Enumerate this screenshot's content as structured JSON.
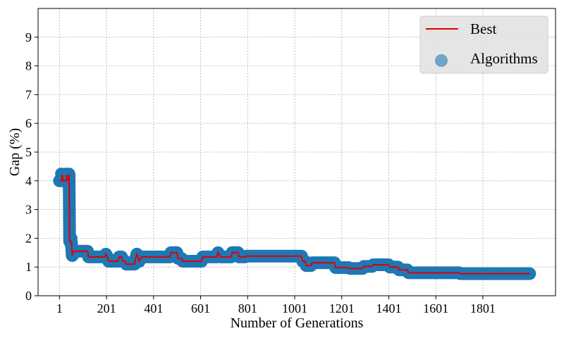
{
  "chart_data": {
    "type": "scatter",
    "title": "",
    "xlabel": "Number of Generations",
    "ylabel": "Gap (%)",
    "xlim": [
      -90,
      2110
    ],
    "ylim": [
      0,
      10
    ],
    "x_ticks": [
      1,
      201,
      401,
      601,
      801,
      1001,
      1201,
      1401,
      1601,
      1801
    ],
    "y_ticks": [
      0,
      1,
      2,
      3,
      4,
      5,
      6,
      7,
      8,
      9
    ],
    "grid": true,
    "legend": {
      "position": "top-right",
      "entries": [
        "Best",
        "Algorithms"
      ]
    },
    "colors": {
      "best": "#e00000",
      "algorithms": "#1f77b4"
    },
    "series": [
      {
        "name": "Best",
        "style": "line",
        "points": [
          [
            1,
            4.0
          ],
          [
            10,
            4.0
          ],
          [
            12,
            4.22
          ],
          [
            18,
            4.0
          ],
          [
            30,
            4.0
          ],
          [
            32,
            4.2
          ],
          [
            38,
            4.0
          ],
          [
            42,
            4.22
          ],
          [
            44,
            1.9
          ],
          [
            50,
            1.9
          ],
          [
            52,
            1.85
          ],
          [
            55,
            1.4
          ],
          [
            58,
            1.55
          ],
          [
            120,
            1.55
          ],
          [
            125,
            1.35
          ],
          [
            195,
            1.35
          ],
          [
            198,
            1.45
          ],
          [
            205,
            1.35
          ],
          [
            210,
            1.2
          ],
          [
            250,
            1.2
          ],
          [
            255,
            1.35
          ],
          [
            265,
            1.35
          ],
          [
            270,
            1.2
          ],
          [
            280,
            1.2
          ],
          [
            285,
            1.1
          ],
          [
            320,
            1.1
          ],
          [
            325,
            1.3
          ],
          [
            330,
            1.45
          ],
          [
            340,
            1.2
          ],
          [
            350,
            1.35
          ],
          [
            470,
            1.35
          ],
          [
            475,
            1.5
          ],
          [
            500,
            1.5
          ],
          [
            505,
            1.3
          ],
          [
            520,
            1.3
          ],
          [
            525,
            1.2
          ],
          [
            605,
            1.2
          ],
          [
            610,
            1.35
          ],
          [
            670,
            1.35
          ],
          [
            675,
            1.5
          ],
          [
            685,
            1.35
          ],
          [
            730,
            1.35
          ],
          [
            735,
            1.5
          ],
          [
            760,
            1.5
          ],
          [
            765,
            1.35
          ],
          [
            790,
            1.35
          ],
          [
            795,
            1.38
          ],
          [
            1030,
            1.38
          ],
          [
            1035,
            1.2
          ],
          [
            1045,
            1.2
          ],
          [
            1050,
            1.05
          ],
          [
            1070,
            1.05
          ],
          [
            1075,
            1.15
          ],
          [
            1170,
            1.15
          ],
          [
            1175,
            0.98
          ],
          [
            1230,
            0.98
          ],
          [
            1235,
            0.95
          ],
          [
            1290,
            0.95
          ],
          [
            1295,
            1.02
          ],
          [
            1330,
            1.02
          ],
          [
            1335,
            1.08
          ],
          [
            1400,
            1.08
          ],
          [
            1405,
            1.0
          ],
          [
            1440,
            1.0
          ],
          [
            1445,
            0.9
          ],
          [
            1480,
            0.9
          ],
          [
            1485,
            0.8
          ],
          [
            1700,
            0.8
          ],
          [
            1705,
            0.77
          ],
          [
            2000,
            0.77
          ]
        ]
      },
      {
        "name": "Algorithms",
        "style": "markers",
        "points": [
          [
            1,
            4.0
          ],
          [
            8,
            4.25
          ],
          [
            18,
            4.0
          ],
          [
            28,
            4.25
          ],
          [
            36,
            4.0
          ],
          [
            42,
            4.25
          ],
          [
            44,
            2.9
          ],
          [
            46,
            2.0
          ],
          [
            52,
            2.0
          ],
          [
            48,
            1.8
          ],
          [
            58,
            1.4
          ]
        ]
      }
    ]
  }
}
